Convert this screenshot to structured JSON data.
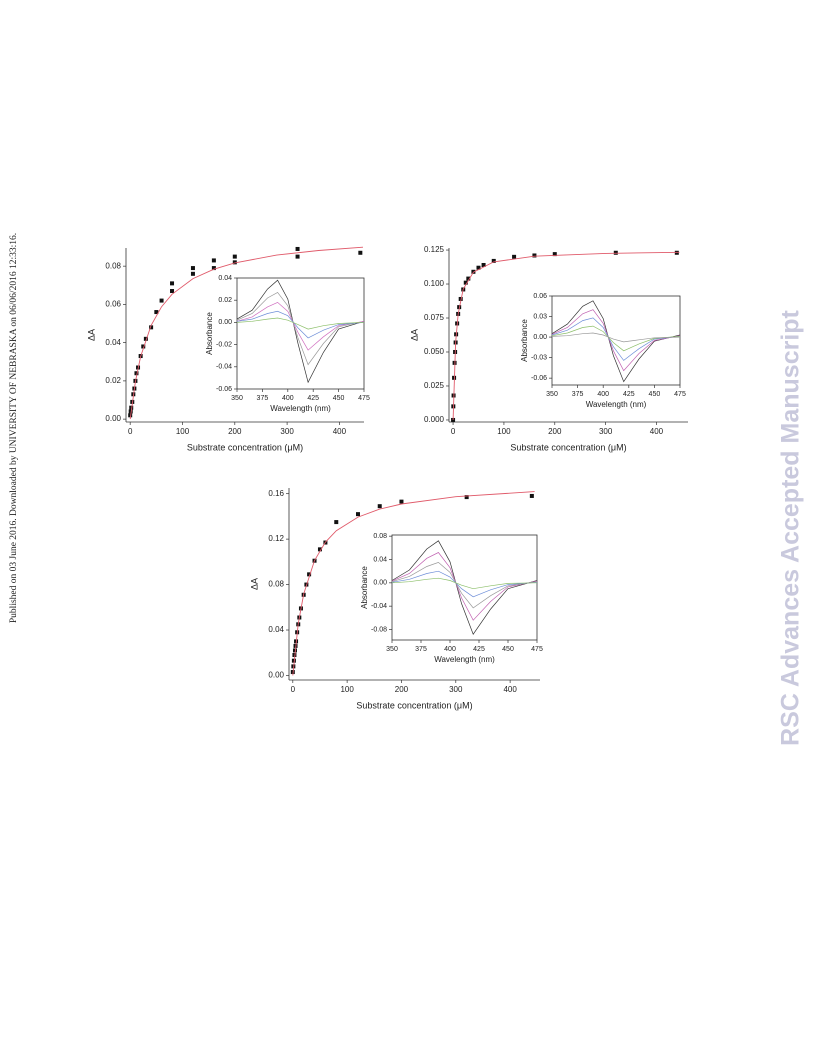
{
  "side_note": "Published on 03 June 2016. Downloaded by UNIVERSITY OF NEBRASKA on 06/06/2016 12:33:16.",
  "watermark": "RSC Advances Accepted Manuscript",
  "chart_data": [
    {
      "type": "scatter",
      "xlabel": "Substrate concentration (μM)",
      "ylabel": "ΔA",
      "xlim": [
        -8,
        447
      ],
      "ylim": [
        -0.0015,
        0.0895
      ],
      "xticks": [
        0,
        100,
        200,
        300,
        400
      ],
      "yticks": [
        {
          "value": 0,
          "label": "0.00"
        },
        0.02,
        0.04,
        0.06,
        0.08
      ],
      "series": [
        {
          "type": "scatter",
          "color": "#111111",
          "x": [
            0,
            1,
            2,
            4,
            6,
            8,
            10,
            12,
            15,
            20,
            25,
            30,
            40,
            50,
            60,
            80,
            80,
            120,
            120,
            160,
            160,
            200,
            200,
            320,
            320,
            440
          ],
          "values": [
            0.002,
            0.004,
            0.006,
            0.009,
            0.013,
            0.016,
            0.02,
            0.024,
            0.027,
            0.033,
            0.038,
            0.042,
            0.048,
            0.056,
            0.062,
            0.067,
            0.071,
            0.076,
            0.079,
            0.079,
            0.083,
            0.082,
            0.085,
            0.085,
            0.089,
            0.087
          ]
        },
        {
          "type": "line",
          "color": "#e05a6a",
          "x": [
            0,
            10,
            20,
            40,
            60,
            80,
            120,
            160,
            200,
            280,
            360,
            445
          ],
          "values": [
            0,
            0.0196,
            0.0327,
            0.049,
            0.0588,
            0.0653,
            0.0735,
            0.0784,
            0.0817,
            0.0858,
            0.0882,
            0.0899
          ]
        }
      ]
    },
    {
      "type": "line",
      "xlabel": "Wavelength (nm)",
      "ylabel": "Absorbance",
      "xlim": [
        350,
        475
      ],
      "ylim": [
        -0.06,
        0.04
      ],
      "xticks": [
        350,
        375,
        400,
        425,
        450,
        475
      ],
      "yticks": [
        0.04,
        0.02,
        {
          "value": 0,
          "label": "0.00"
        },
        -0.02,
        -0.04,
        -0.06
      ],
      "x": [
        350,
        365,
        380,
        390,
        400,
        410,
        420,
        435,
        450,
        475
      ],
      "series": [
        {
          "color": "#333333",
          "values": [
            0.003,
            0.011,
            0.03,
            0.038,
            0.021,
            -0.019,
            -0.054,
            -0.027,
            -0.006,
            0.001
          ]
        },
        {
          "color": "#999999",
          "values": [
            0.002,
            0.008,
            0.022,
            0.027,
            0.015,
            -0.014,
            -0.038,
            -0.019,
            -0.004,
            0.001
          ]
        },
        {
          "color": "#d070c0",
          "values": [
            0.001,
            0.005,
            0.014,
            0.018,
            0.01,
            -0.009,
            -0.025,
            -0.013,
            -0.003,
            0.001
          ]
        },
        {
          "color": "#6f8fd8",
          "values": [
            0.001,
            0.003,
            0.008,
            0.01,
            0.006,
            -0.005,
            -0.014,
            -0.007,
            -0.002,
            0
          ]
        },
        {
          "color": "#8cbf6a",
          "values": [
            0,
            0.001,
            0.003,
            0.004,
            0.002,
            -0.002,
            -0.006,
            -0.003,
            -0.001,
            0
          ]
        }
      ]
    },
    {
      "type": "scatter",
      "xlabel": "Substrate concentration (μM)",
      "ylabel": "ΔA",
      "xlim": [
        -8,
        462
      ],
      "ylim": [
        -0.0015,
        0.1265
      ],
      "xticks": [
        0,
        100,
        200,
        300,
        400
      ],
      "yticks": [
        {
          "value": 0,
          "label": "0.000"
        },
        0.025,
        {
          "value": 0.05,
          "label": "0.050"
        },
        0.075,
        {
          "value": 0.1,
          "label": "0.100"
        },
        0.125
      ],
      "series": [
        {
          "type": "scatter",
          "color": "#111111",
          "x": [
            0,
            0.5,
            1,
            2,
            3,
            4,
            5,
            6,
            8,
            10,
            12,
            15,
            20,
            25,
            30,
            40,
            50,
            60,
            80,
            120,
            160,
            200,
            320,
            440
          ],
          "values": [
            0,
            0.01,
            0.018,
            0.031,
            0.042,
            0.05,
            0.057,
            0.063,
            0.071,
            0.078,
            0.083,
            0.089,
            0.096,
            0.101,
            0.104,
            0.109,
            0.112,
            0.114,
            0.117,
            0.12,
            0.121,
            0.122,
            0.123,
            0.123
          ]
        },
        {
          "type": "line",
          "color": "#e05a6a",
          "x": [
            0,
            5,
            10,
            20,
            40,
            80,
            160,
            300,
            445
          ],
          "values": [
            0,
            0.0568,
            0.0781,
            0.0962,
            0.1087,
            0.1163,
            0.1205,
            0.1225,
            0.1233
          ]
        }
      ]
    },
    {
      "type": "line",
      "xlabel": "Wavelength (nm)",
      "ylabel": "Absorbance",
      "xlim": [
        350,
        475
      ],
      "ylim": [
        -0.07,
        0.06
      ],
      "xticks": [
        350,
        375,
        400,
        425,
        450,
        475
      ],
      "yticks": [
        0.06,
        0.03,
        {
          "value": 0,
          "label": "0.00"
        },
        -0.03,
        -0.06
      ],
      "x": [
        350,
        365,
        380,
        390,
        400,
        410,
        420,
        435,
        450,
        475
      ],
      "series": [
        {
          "color": "#333333",
          "values": [
            0.005,
            0.019,
            0.045,
            0.053,
            0.027,
            -0.027,
            -0.065,
            -0.032,
            -0.006,
            0.003
          ]
        },
        {
          "color": "#c060b0",
          "values": [
            0.004,
            0.014,
            0.034,
            0.04,
            0.02,
            -0.02,
            -0.049,
            -0.024,
            -0.005,
            0.002
          ]
        },
        {
          "color": "#6f8fd8",
          "values": [
            0.003,
            0.01,
            0.024,
            0.028,
            0.014,
            -0.014,
            -0.034,
            -0.017,
            -0.003,
            0.001
          ]
        },
        {
          "color": "#8cbf6a",
          "values": [
            0.002,
            0.006,
            0.014,
            0.016,
            0.008,
            -0.008,
            -0.02,
            -0.01,
            -0.002,
            0.001
          ]
        },
        {
          "color": "#999999",
          "values": [
            0.001,
            0.002,
            0.005,
            0.006,
            0.003,
            -0.003,
            -0.007,
            -0.004,
            -0.001,
            0
          ]
        }
      ]
    },
    {
      "type": "scatter",
      "xlabel": "Substrate concentration (μM)",
      "ylabel": "ΔA",
      "xlim": [
        -7,
        455
      ],
      "ylim": [
        -0.004,
        0.165
      ],
      "xticks": [
        0,
        100,
        200,
        300,
        400
      ],
      "yticks": [
        {
          "value": 0,
          "label": "0.00"
        },
        0.04,
        0.08,
        0.12,
        0.16
      ],
      "series": [
        {
          "type": "scatter",
          "color": "#111111",
          "x": [
            0,
            1,
            2,
            3,
            4,
            5,
            6,
            8,
            10,
            12,
            15,
            20,
            25,
            30,
            40,
            50,
            60,
            80,
            120,
            160,
            200,
            320,
            440
          ],
          "values": [
            0.003,
            0.008,
            0.013,
            0.018,
            0.022,
            0.026,
            0.03,
            0.038,
            0.045,
            0.051,
            0.059,
            0.071,
            0.08,
            0.089,
            0.101,
            0.111,
            0.117,
            0.135,
            0.142,
            0.149,
            0.153,
            0.157,
            0.158
          ]
        },
        {
          "type": "line",
          "color": "#e05a6a",
          "x": [
            0,
            10,
            20,
            40,
            60,
            80,
            120,
            160,
            200,
            300,
            445
          ],
          "values": [
            0,
            0.0453,
            0.0717,
            0.1012,
            0.1173,
            0.1274,
            0.1394,
            0.1464,
            0.1509,
            0.1573,
            0.1618
          ]
        }
      ]
    },
    {
      "type": "line",
      "xlabel": "Wavelength (nm)",
      "ylabel": "Absorbance",
      "xlim": [
        350,
        475
      ],
      "ylim": [
        -0.098,
        0.082
      ],
      "xticks": [
        350,
        375,
        400,
        425,
        450,
        475
      ],
      "yticks": [
        0.08,
        0.04,
        {
          "value": 0,
          "label": "0.00"
        },
        -0.04,
        -0.08
      ],
      "x": [
        350,
        365,
        380,
        390,
        400,
        410,
        420,
        435,
        450,
        475
      ],
      "series": [
        {
          "color": "#333333",
          "values": [
            0.004,
            0.022,
            0.058,
            0.072,
            0.036,
            -0.036,
            -0.088,
            -0.045,
            -0.01,
            0.004
          ]
        },
        {
          "color": "#c060b0",
          "values": [
            0.003,
            0.016,
            0.042,
            0.052,
            0.026,
            -0.026,
            -0.064,
            -0.032,
            -0.007,
            0.003
          ]
        },
        {
          "color": "#999999",
          "values": [
            0.002,
            0.011,
            0.028,
            0.035,
            0.018,
            -0.018,
            -0.043,
            -0.022,
            -0.005,
            0.002
          ]
        },
        {
          "color": "#6f8fd8",
          "values": [
            0.001,
            0.006,
            0.016,
            0.02,
            0.01,
            -0.01,
            -0.024,
            -0.012,
            -0.003,
            0.001
          ]
        },
        {
          "color": "#8cbf6a",
          "values": [
            0,
            0.002,
            0.006,
            0.008,
            0.004,
            -0.004,
            -0.01,
            -0.005,
            -0.001,
            0
          ]
        }
      ]
    }
  ]
}
